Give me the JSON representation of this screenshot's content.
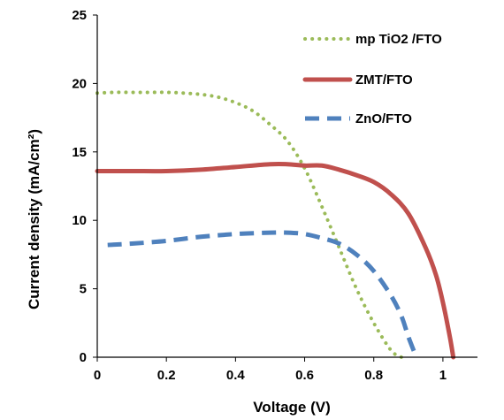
{
  "chart_data": {
    "type": "line",
    "xlabel": "Voltage (V)",
    "ylabel": "Current density (mA/cm²)",
    "xlim": [
      0,
      1.1
    ],
    "ylim": [
      0,
      25
    ],
    "x_ticks": [
      "0",
      "0.2",
      "0.4",
      "0.6",
      "0.8",
      "1"
    ],
    "y_ticks": [
      "0",
      "5",
      "10",
      "15",
      "20",
      "25"
    ],
    "grid": false,
    "legend_position": "top-right",
    "series": [
      {
        "name": "mp TiO2 /FTO",
        "color": "#9bbb59",
        "style": "dotted",
        "x": [
          0,
          0.05,
          0.1,
          0.15,
          0.2,
          0.25,
          0.3,
          0.35,
          0.4,
          0.45,
          0.5,
          0.55,
          0.6,
          0.65,
          0.7,
          0.75,
          0.8,
          0.85,
          0.88
        ],
        "y": [
          19.3,
          19.35,
          19.35,
          19.35,
          19.35,
          19.3,
          19.2,
          19.0,
          18.6,
          18.0,
          17.0,
          15.8,
          13.8,
          11.0,
          8.0,
          5.0,
          2.5,
          0.5,
          0
        ]
      },
      {
        "name": "ZMT/FTO",
        "color": "#c0504d",
        "style": "solid",
        "x": [
          0,
          0.1,
          0.2,
          0.3,
          0.4,
          0.5,
          0.55,
          0.6,
          0.65,
          0.7,
          0.75,
          0.8,
          0.85,
          0.9,
          0.95,
          0.98,
          1.0,
          1.02,
          1.03
        ],
        "y": [
          13.6,
          13.6,
          13.6,
          13.7,
          13.9,
          14.1,
          14.1,
          14.0,
          14.0,
          13.7,
          13.3,
          12.8,
          11.9,
          10.5,
          8.0,
          6.0,
          4.0,
          1.5,
          0
        ]
      },
      {
        "name": "ZnO/FTO",
        "color": "#4f81bd",
        "style": "dashed",
        "x": [
          0.03,
          0.1,
          0.2,
          0.3,
          0.4,
          0.5,
          0.55,
          0.6,
          0.65,
          0.7,
          0.75,
          0.8,
          0.85,
          0.88,
          0.9,
          0.92
        ],
        "y": [
          8.2,
          8.3,
          8.5,
          8.8,
          9.0,
          9.1,
          9.1,
          9.0,
          8.7,
          8.3,
          7.5,
          6.3,
          4.5,
          3.0,
          1.5,
          0.2
        ]
      }
    ]
  }
}
